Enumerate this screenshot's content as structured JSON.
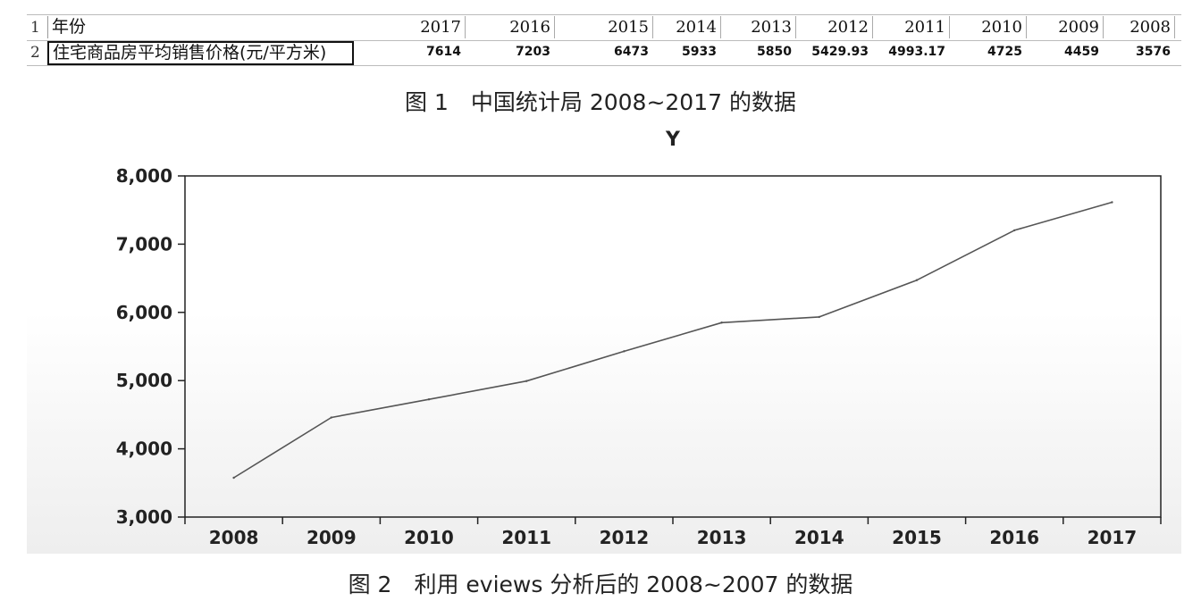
{
  "table": {
    "row_numbers": [
      "1",
      "2"
    ],
    "header_label": "年份",
    "value_label": "住宅商品房平均销售价格(元/平方米)",
    "years": [
      "2017",
      "2016",
      "2015",
      "2014",
      "2013",
      "2012",
      "2011",
      "2010",
      "2009",
      "2008"
    ],
    "values": [
      "7614",
      "7203",
      "6473",
      "5933",
      "5850",
      "5429.93",
      "4993.17",
      "4725",
      "4459",
      "3576"
    ]
  },
  "caption1": "图 1　中国统计局 2008~2017 的数据",
  "caption2": "图 2　利用 eviews 分析后的 2008~2007 的数据",
  "chart_data": {
    "type": "line",
    "title": "Y",
    "xlabel": "",
    "ylabel": "",
    "x": [
      "2008",
      "2009",
      "2010",
      "2011",
      "2012",
      "2013",
      "2014",
      "2015",
      "2016",
      "2017"
    ],
    "categories": [
      "2008",
      "2009",
      "2010",
      "2011",
      "2012",
      "2013",
      "2014",
      "2015",
      "2016",
      "2017"
    ],
    "series": [
      {
        "values": [
          3576,
          4459,
          4725,
          4993.17,
          5429.93,
          5850,
          5933,
          6473,
          7203,
          7614
        ]
      }
    ],
    "ylim": [
      3000,
      8000
    ],
    "yticks": [
      "3,000",
      "4,000",
      "5,000",
      "6,000",
      "7,000",
      "8,000"
    ],
    "ytick_values": [
      3000,
      4000,
      5000,
      6000,
      7000,
      8000
    ],
    "grid": false,
    "legend": "none",
    "colors": {
      "line": "#555555",
      "axis": "#222222"
    }
  }
}
